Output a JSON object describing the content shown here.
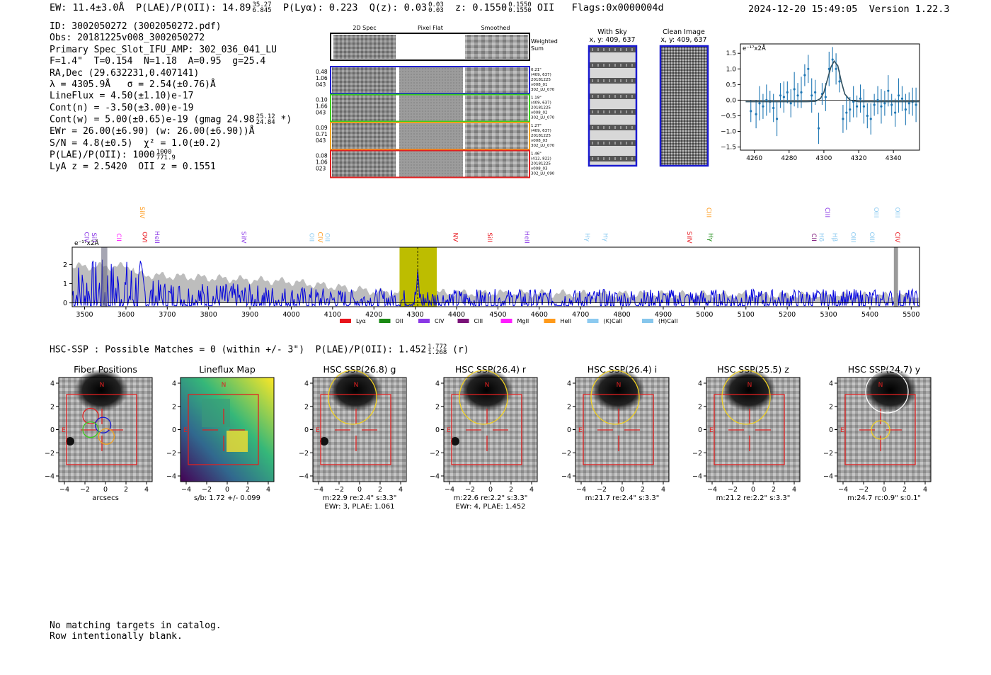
{
  "header": {
    "ew": "EW: 11.4±3.0Å",
    "plae_label": "P(LAE)/P(OII): 14.89",
    "plae_hi": "35.27",
    "plae_lo": "6.845",
    "plya": "P(Lyα): 0.223",
    "qz_label": "Q(z): 0.03",
    "qz_hi": "0.03",
    "qz_lo": "0.03",
    "z_label": "z: 0.1550",
    "z_hi": "0.1550",
    "z_lo": "0.1550",
    "z_line": "OII",
    "flags": "Flags:0x0000004d",
    "datetime": "2024-12-20 15:49:05",
    "version": "Version 1.22.3"
  },
  "info": {
    "id": "ID: 3002050272 (3002050272.pdf)",
    "obs": "Obs: 20181225v008_3002050272",
    "primary": "Primary Spec_Slot_IFU_AMP: 302_036_041_LU",
    "fit": "F=1.4\"  T=0.154  N=1.18  A=0.95  g=25.4",
    "radec": "RA,Dec (29.632231,0.407141)",
    "lambda": "λ = 4305.9Å   σ = 2.54(±0.76)Å",
    "lineflux": "LineFlux = 4.50(±1.10)e-17",
    "contn": "Cont(n) = -3.50(±3.00)e-19",
    "contw": "Cont(w) = 5.00(±0.65)e-19 (gmag 24.98",
    "contw_hi": "25.12",
    "contw_lo": "24.84",
    "contw_end": "*)",
    "ewr": "EWr = 26.00(±6.90) (w: 26.00(±6.90))Å",
    "sn": "S/N = 4.8(±0.5)  χ² = 1.0(±0.2)",
    "plae": "P(LAE)/P(OII): 1000",
    "plae_hi": "1000",
    "plae_lo": "771.9",
    "lya": "LyA z = 2.5420  OII z = 0.1551"
  },
  "cutouts": {
    "col_titles": [
      "2D Spec",
      "Pixel Flat",
      "Smoothed"
    ],
    "weighted_sum": [
      "Weighted",
      "Sum"
    ],
    "rows": [
      {
        "left": [
          "0.48",
          "1.06",
          "043"
        ],
        "right": [
          "0.21\"",
          "(409, 637)",
          "20181225",
          "v008_01",
          "302_LU_070"
        ],
        "color": "#1f1fd0"
      },
      {
        "left": [
          "0.10",
          "1.66",
          "043"
        ],
        "right": [
          "1.19\"",
          "(409, 637)",
          "20181225",
          "v008_02",
          "302_LU_070"
        ],
        "color": "#3ccc1f"
      },
      {
        "left": [
          "0.09",
          "0.71",
          "043"
        ],
        "right": [
          "1.27\"",
          "(409, 637)",
          "20181225",
          "v008_03",
          "302_LU_070"
        ],
        "color": "#f0a020"
      },
      {
        "left": [
          "0.08",
          "1.06",
          "023"
        ],
        "right": [
          "1.46\"",
          "(412, 822)",
          "20181225",
          "v008_03",
          "302_LU_090"
        ],
        "color": "#e02020"
      }
    ],
    "with_sky_title": "With Sky",
    "with_sky_xy": "x, y: 409, 637",
    "clean_title": "Clean Image",
    "clean_xy": "x, y: 409, 637"
  },
  "small_spec": {
    "unit_label": "e⁻¹⁷x2Å",
    "x_ticks": [
      "4260",
      "4280",
      "4300",
      "4320",
      "4340"
    ],
    "y_ticks": [
      "1.5",
      "1.0",
      "0.5",
      "0.0",
      "−0.5",
      "−1.0",
      "−1.5"
    ]
  },
  "full_spec": {
    "unit_label": "e⁻¹⁷x2Å",
    "x_ticks": [
      "3500",
      "3600",
      "3700",
      "3800",
      "3900",
      "4000",
      "4100",
      "4200",
      "4300",
      "4400",
      "4500",
      "4600",
      "4700",
      "4800",
      "4900",
      "5000",
      "5100",
      "5200",
      "5300",
      "5400",
      "5500"
    ],
    "y_ticks": [
      "2",
      "1",
      "0"
    ],
    "legend": [
      {
        "label": "Lyα",
        "color": "#e8141c"
      },
      {
        "label": "OII",
        "color": "#1a8a14"
      },
      {
        "label": "CIV",
        "color": "#8a38e6"
      },
      {
        "label": "CIII",
        "color": "#7a1278"
      },
      {
        "label": "MgII",
        "color": "#ff1cff"
      },
      {
        "label": "HeII",
        "color": "#ff9a1a"
      },
      {
        "label": "(K)CaII",
        "color": "#8ccaf0"
      },
      {
        "label": "(H)CaII",
        "color": "#86c6ec"
      }
    ],
    "lines": [
      {
        "label": "CIV",
        "wave": 3500,
        "color": "#8a38e6"
      },
      {
        "label": "SiII",
        "wave": 3518,
        "color": "#8a38e6"
      },
      {
        "label": "CII",
        "wave": 3578,
        "color": "#ff1cff"
      },
      {
        "label": "SiIV",
        "wave": 3634,
        "color": "#ff9a1a"
      },
      {
        "label": "OVI",
        "wave": 3640,
        "color": "#e8141c"
      },
      {
        "label": "HeII",
        "wave": 3670,
        "color": "#8a38e6"
      },
      {
        "label": "SiIV",
        "wave": 3880,
        "color": "#8a38e6"
      },
      {
        "label": "OII",
        "wave": 4045,
        "color": "#8ccaf0"
      },
      {
        "label": "CIV",
        "wave": 4065,
        "color": "#ff9a1a"
      },
      {
        "label": "OII",
        "wave": 4082,
        "color": "#8ccaf0"
      },
      {
        "label": "NV",
        "wave": 4392,
        "color": "#e8141c"
      },
      {
        "label": "SiII",
        "wave": 4475,
        "color": "#e8141c"
      },
      {
        "label": "HeII",
        "wave": 4565,
        "color": "#8a38e6"
      },
      {
        "label": "Hγ",
        "wave": 4712,
        "color": "#8ccaf0"
      },
      {
        "label": "Hγ",
        "wave": 4755,
        "color": "#8ccaf0"
      },
      {
        "label": "SiIV",
        "wave": 4958,
        "color": "#e8141c"
      },
      {
        "label": "CIII",
        "wave": 5005,
        "color": "#ff9a1a"
      },
      {
        "label": "Hγ",
        "wave": 5010,
        "color": "#1a8a14"
      },
      {
        "label": "CII",
        "wave": 5260,
        "color": "#7a1278"
      },
      {
        "label": "Hδ",
        "wave": 5278,
        "color": "#8ccaf0"
      },
      {
        "label": "CIII",
        "wave": 5292,
        "color": "#8a38e6"
      },
      {
        "label": "Hβ",
        "wave": 5310,
        "color": "#8ccaf0"
      },
      {
        "label": "OIII",
        "wave": 5355,
        "color": "#8ccaf0"
      },
      {
        "label": "OIII",
        "wave": 5400,
        "color": "#8ccaf0"
      },
      {
        "label": "OIII",
        "wave": 5410,
        "color": "#8ccaf0"
      },
      {
        "label": "OIII",
        "wave": 5462,
        "color": "#8ccaf0"
      },
      {
        "label": "CIV",
        "wave": 5462,
        "color": "#e8141c"
      }
    ]
  },
  "hsc": {
    "line": "HSC-SSP : Possible Matches = 0 (within +/- 3\")  P(LAE)/P(OII): 1.452",
    "plae_hi": "1.772",
    "plae_lo": "1.268",
    "plae_band": "(r)",
    "tick_labels": [
      "−4",
      "−2",
      "0",
      "2",
      "4"
    ],
    "north": "N",
    "east": "E",
    "panels": [
      {
        "title": "Fiber Positions",
        "sub": [
          "arcsecs"
        ]
      },
      {
        "title": "Lineflux Map",
        "sub": [
          "s/b: 1.72 +/- 0.099"
        ]
      },
      {
        "title": "HSC SSP(26.8) g",
        "sub": [
          "m:22.9  re:2.4\"  s:3.3\"",
          "EWr: 3, PLAE: 1.061"
        ]
      },
      {
        "title": "HSC SSP(26.4) r",
        "sub": [
          "m:22.6  re:2.2\"  s:3.3\"",
          "EWr: 4, PLAE: 1.452"
        ]
      },
      {
        "title": "HSC SSP(26.4) i",
        "sub": [
          "m:21.7  re:2.4\"  s:3.3\""
        ]
      },
      {
        "title": "HSC SSP(25.5) z",
        "sub": [
          "m:21.2  re:2.2\"  s:3.3\""
        ]
      },
      {
        "title": "HSC SSP(24.7) y",
        "sub": [
          "m:24.7  rc:0.9\"  s:0.1\""
        ]
      }
    ]
  },
  "footer": {
    "line1": "No matching targets in catalog.",
    "line2": "Row intentionally blank."
  },
  "chart_data": [
    {
      "type": "line",
      "title": "",
      "xlabel": "",
      "ylabel": "e-17 x2Å",
      "xlim": [
        4252,
        4355
      ],
      "ylim": [
        -1.6,
        1.8
      ],
      "series": [
        {
          "name": "data",
          "x": [
            4258,
            4261,
            4263,
            4265,
            4267,
            4269,
            4271,
            4273,
            4275,
            4277,
            4279,
            4281,
            4283,
            4285,
            4287,
            4289,
            4291,
            4293,
            4295,
            4297,
            4299,
            4301,
            4303,
            4305,
            4307,
            4309,
            4311,
            4313,
            4315,
            4317,
            4319,
            4321,
            4323,
            4325,
            4327,
            4329,
            4331,
            4333,
            4335,
            4337,
            4339,
            4341,
            4343,
            4345,
            4347,
            4349,
            4351,
            4353
          ],
          "values": [
            -0.35,
            -0.45,
            -0.1,
            -0.2,
            0.0,
            -0.05,
            -0.25,
            -0.6,
            0.15,
            0.1,
            0.25,
            -0.1,
            0.35,
            0.15,
            0.25,
            0.8,
            1.0,
            0.15,
            0.25,
            -0.9,
            0.2,
            0.1,
            1.0,
            1.3,
            1.0,
            0.6,
            -0.6,
            -0.4,
            -0.3,
            -0.05,
            -0.2,
            0.05,
            -0.2,
            -0.5,
            -0.6,
            -0.15,
            0.0,
            -0.2,
            -0.1,
            0.3,
            -0.15,
            -0.4,
            0.15,
            0.05,
            -0.3,
            -0.1,
            -0.05,
            -0.15
          ]
        },
        {
          "name": "fit",
          "x": [
            4255,
            4290,
            4295,
            4298,
            4300,
            4302,
            4304,
            4305.9,
            4308,
            4310,
            4312,
            4315,
            4320,
            4355
          ],
          "values": [
            -0.05,
            -0.05,
            -0.04,
            0.05,
            0.25,
            0.65,
            1.05,
            1.25,
            1.1,
            0.6,
            0.2,
            0.0,
            -0.05,
            -0.05
          ]
        }
      ]
    },
    {
      "type": "line",
      "title": "",
      "xlabel": "",
      "ylabel": "e-17 x2Å",
      "xlim": [
        3470,
        5520
      ],
      "ylim": [
        -0.2,
        2.9
      ],
      "highlight_band": [
        4262,
        4352
      ],
      "marker_line": 4305.9,
      "series": [
        {
          "name": "flux",
          "color": "#0000dd"
        },
        {
          "name": "sky",
          "color": "#bbbbbb"
        }
      ]
    }
  ]
}
